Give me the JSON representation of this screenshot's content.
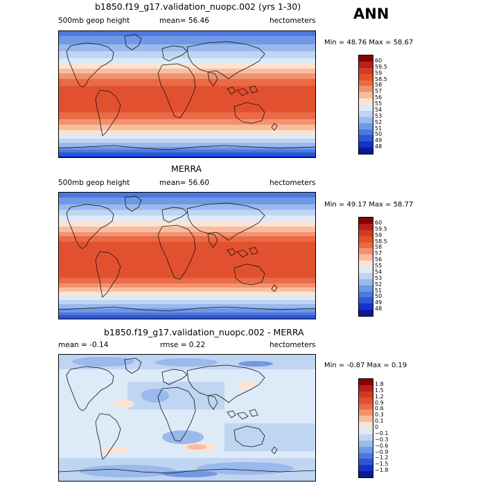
{
  "season": "ANN",
  "panels": [
    {
      "title": "b1850.f19_g17.validation_nuopc.002 (yrs 1-30)",
      "left_text": "500mb geop height",
      "mean_text": "mean=   56.46",
      "right_text": "hectometers",
      "minmax": "Min =   48.76  Max =   58.67",
      "levels": [
        "60",
        "59.5",
        "59",
        "58.5",
        "58",
        "57",
        "56",
        "55",
        "54",
        "53",
        "52",
        "51",
        "50",
        "49",
        "48"
      ],
      "colors": [
        "#8b0000",
        "#b5221a",
        "#d23a22",
        "#e2512f",
        "#ea6a45",
        "#f3926e",
        "#f8bd9f",
        "#fde3d2",
        "#ddeaf8",
        "#bfd5f1",
        "#9ab9ec",
        "#7198e6",
        "#4d78df",
        "#2d57d6",
        "#1333c9",
        "#0a1a96"
      ],
      "map_id": "map1"
    },
    {
      "title": "MERRA",
      "left_text": "500mb geop height",
      "mean_text": "mean=   56.60",
      "right_text": "hectometers",
      "minmax": "Min =   49.17  Max =   58.77",
      "levels": [
        "60",
        "59.5",
        "59",
        "58.5",
        "58",
        "57",
        "56",
        "55",
        "54",
        "53",
        "52",
        "51",
        "50",
        "49",
        "48"
      ],
      "colors": [
        "#8b0000",
        "#b5221a",
        "#d23a22",
        "#e2512f",
        "#ea6a45",
        "#f3926e",
        "#f8bd9f",
        "#fde3d2",
        "#ddeaf8",
        "#bfd5f1",
        "#9ab9ec",
        "#7198e6",
        "#4d78df",
        "#2d57d6",
        "#1333c9",
        "#0a1a96"
      ],
      "map_id": "map2"
    },
    {
      "title": "b1850.f19_g17.validation_nuopc.002 - MERRA",
      "left_text": "mean =   -0.14",
      "mean_text": "rmse =    0.22",
      "right_text": "hectometers",
      "minmax": "Min =   -0.87  Max =    0.19",
      "levels": [
        "1.8",
        "1.5",
        "1.2",
        "0.9",
        "0.6",
        "0.3",
        "0.1",
        "0",
        "−0.1",
        "−0.3",
        "−0.6",
        "−0.9",
        "−1.2",
        "−1.5",
        "−1.8"
      ],
      "colors": [
        "#8b0000",
        "#b5221a",
        "#d23a22",
        "#e2512f",
        "#ea6a45",
        "#f3926e",
        "#f8bd9f",
        "#fde3d2",
        "#ddeaf8",
        "#bfd5f1",
        "#9ab9ec",
        "#7198e6",
        "#4d78df",
        "#2d57d6",
        "#1333c9",
        "#0a1a96"
      ],
      "map_id": "map3"
    }
  ]
}
